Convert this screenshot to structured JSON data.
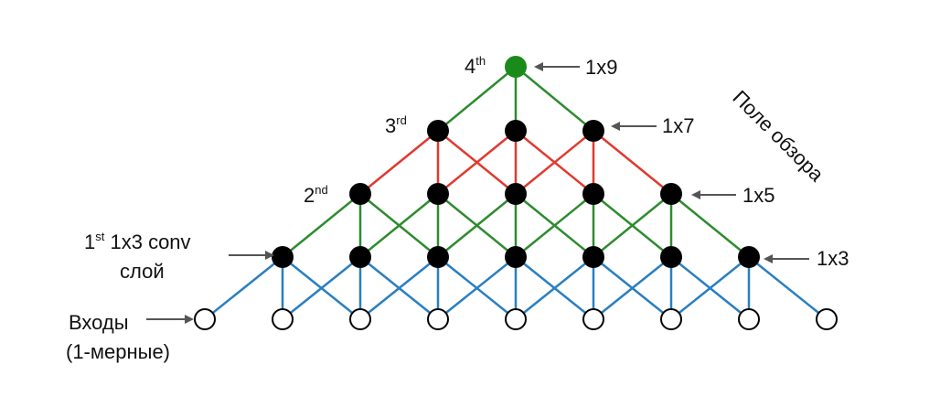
{
  "colors": {
    "input_to_l1": "#2a7fc1",
    "l1_to_l2": "#2a7fc1",
    "l2_to_l3": "#2e8b2e",
    "l3_to_l4": "#e03a2f",
    "l4_to_l5": "#2e8b2e",
    "hidden_node": "#000000",
    "top_node": "#1a8a1a",
    "input_node_fill": "#ffffff",
    "input_node_stroke": "#000000"
  },
  "layers": [
    {
      "key": "inputs",
      "count": 9,
      "node_style": "hollow"
    },
    {
      "key": "l1",
      "count": 7,
      "node_style": "filled"
    },
    {
      "key": "l2",
      "count": 5,
      "node_style": "filled"
    },
    {
      "key": "l3",
      "count": 3,
      "node_style": "filled"
    },
    {
      "key": "l4",
      "count": 1,
      "node_style": "filled-top"
    }
  ],
  "labels": {
    "inputs_line1": "Входы",
    "inputs_line2": "(1-мерные)",
    "layer1_num": "1",
    "layer1_sup": "st",
    "layer1_rest": " 1x3 conv",
    "layer1_line2": "слой",
    "layer2_num": "2",
    "layer2_sup": "nd",
    "layer3_num": "3",
    "layer3_sup": "rd",
    "layer4_num": "4",
    "layer4_sup": "th",
    "rf_l1": "1x3",
    "rf_l2": "1x5",
    "rf_l3": "1x7",
    "rf_l4": "1x9",
    "receptive_field_title": "Поле обзора"
  }
}
